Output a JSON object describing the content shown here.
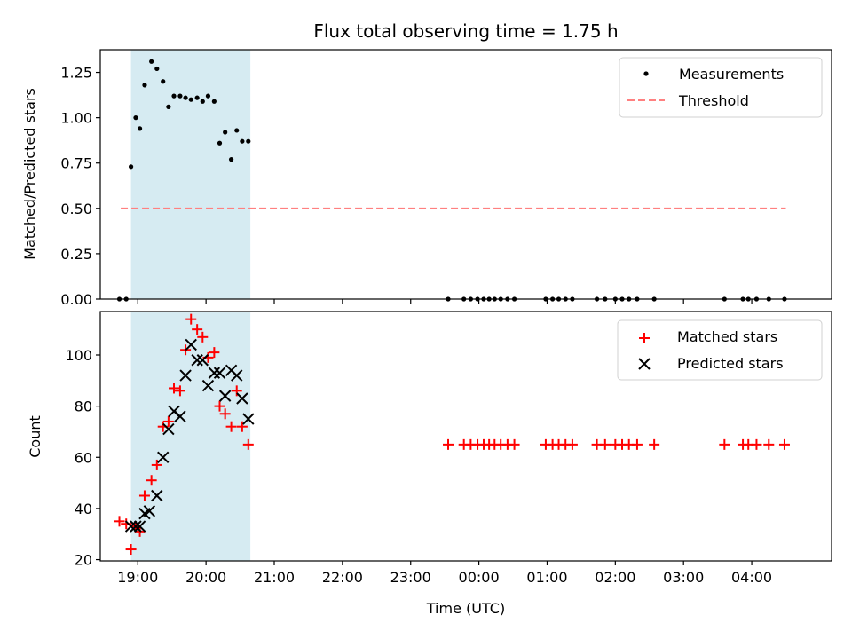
{
  "chart_data": [
    {
      "type": "scatter",
      "title": "Flux total observing time = 1.75 h",
      "xlabel": "",
      "ylabel": "Matched/Predicted stars",
      "ylim": [
        0,
        1.375
      ],
      "xlim": [
        18.45,
        29.17
      ],
      "yticks": [
        0.0,
        0.25,
        0.5,
        0.75,
        1.0,
        1.25
      ],
      "ytick_labels": [
        "0.00",
        "0.25",
        "0.50",
        "0.75",
        "1.00",
        "1.25"
      ],
      "observing_window": [
        18.9,
        20.65
      ],
      "threshold": {
        "value": 0.5,
        "x_range": [
          18.75,
          28.5
        ],
        "color": "#ff8080"
      },
      "legend": {
        "position": "top-right",
        "entries": [
          "Measurements",
          "Threshold"
        ]
      },
      "series": [
        {
          "name": "Measurements",
          "marker": "dot",
          "color": "#000000",
          "x": [
            18.73,
            18.83,
            18.9,
            18.97,
            19.03,
            19.1,
            19.2,
            19.28,
            19.37,
            19.45,
            19.53,
            19.62,
            19.7,
            19.78,
            19.87,
            19.95,
            20.03,
            20.12,
            20.2,
            20.28,
            20.37,
            20.45,
            20.53,
            20.62,
            23.55,
            23.78,
            23.88,
            23.98,
            24.07,
            24.15,
            24.23,
            24.32,
            24.42,
            24.52,
            24.98,
            25.08,
            25.17,
            25.27,
            25.37,
            25.73,
            25.85,
            26.0,
            26.1,
            26.2,
            26.32,
            26.57,
            27.6,
            27.87,
            27.95,
            28.07,
            28.25,
            28.48
          ],
          "y": [
            0.0,
            0.0,
            0.73,
            1.0,
            0.94,
            1.18,
            1.31,
            1.27,
            1.2,
            1.06,
            1.12,
            1.12,
            1.11,
            1.1,
            1.11,
            1.09,
            1.12,
            1.09,
            0.86,
            0.92,
            0.77,
            0.93,
            0.87,
            0.87,
            0,
            0,
            0,
            0,
            0,
            0,
            0,
            0,
            0,
            0,
            0,
            0,
            0,
            0,
            0,
            0,
            0,
            0,
            0,
            0,
            0,
            0,
            0,
            0,
            0,
            0,
            0,
            0
          ]
        }
      ]
    },
    {
      "type": "scatter",
      "title": "",
      "xlabel": "Time (UTC)",
      "ylabel": "Count",
      "ylim": [
        19.5,
        117
      ],
      "xlim": [
        18.45,
        29.17
      ],
      "yticks": [
        20,
        40,
        60,
        80,
        100
      ],
      "ytick_labels": [
        "20",
        "40",
        "60",
        "80",
        "100"
      ],
      "xticks": [
        19,
        20,
        21,
        22,
        23,
        24,
        25,
        26,
        27,
        28
      ],
      "xtick_labels": [
        "19:00",
        "20:00",
        "21:00",
        "22:00",
        "23:00",
        "00:00",
        "01:00",
        "02:00",
        "03:00",
        "04:00"
      ],
      "observing_window": [
        18.9,
        20.65
      ],
      "legend": {
        "position": "top-right",
        "entries": [
          "Matched stars",
          "Predicted stars"
        ]
      },
      "series": [
        {
          "name": "Matched stars",
          "marker": "plus",
          "color": "#ff0000",
          "x": [
            18.73,
            18.83,
            18.9,
            18.97,
            19.03,
            19.1,
            19.2,
            19.28,
            19.37,
            19.45,
            19.53,
            19.62,
            19.7,
            19.78,
            19.87,
            19.95,
            20.03,
            20.12,
            20.2,
            20.28,
            20.37,
            20.45,
            20.53,
            20.62,
            23.55,
            23.78,
            23.88,
            23.98,
            24.07,
            24.15,
            24.23,
            24.32,
            24.42,
            24.52,
            24.98,
            25.08,
            25.17,
            25.27,
            25.37,
            25.73,
            25.85,
            26.0,
            26.1,
            26.2,
            26.32,
            26.57,
            27.6,
            27.87,
            27.95,
            28.07,
            28.25,
            28.48
          ],
          "y": [
            35,
            34,
            24,
            33,
            31,
            45,
            51,
            57,
            72,
            74,
            87,
            86,
            102,
            114,
            110,
            107,
            99,
            101,
            80,
            77,
            72,
            86,
            72,
            65,
            65,
            65,
            65,
            65,
            65,
            65,
            65,
            65,
            65,
            65,
            65,
            65,
            65,
            65,
            65,
            65,
            65,
            65,
            65,
            65,
            65,
            65,
            65,
            65,
            65,
            65,
            65,
            65
          ]
        },
        {
          "name": "Predicted stars",
          "marker": "x",
          "color": "#000000",
          "x": [
            18.9,
            18.97,
            19.03,
            19.1,
            19.17,
            19.28,
            19.37,
            19.45,
            19.53,
            19.62,
            19.7,
            19.78,
            19.87,
            19.95,
            20.03,
            20.12,
            20.2,
            20.28,
            20.37,
            20.45,
            20.53,
            20.62
          ],
          "y": [
            33,
            33,
            33,
            38,
            39,
            45,
            60,
            71,
            78,
            76,
            92,
            104,
            98,
            98,
            88,
            93,
            93,
            84,
            94,
            92,
            83,
            75
          ]
        }
      ]
    }
  ]
}
